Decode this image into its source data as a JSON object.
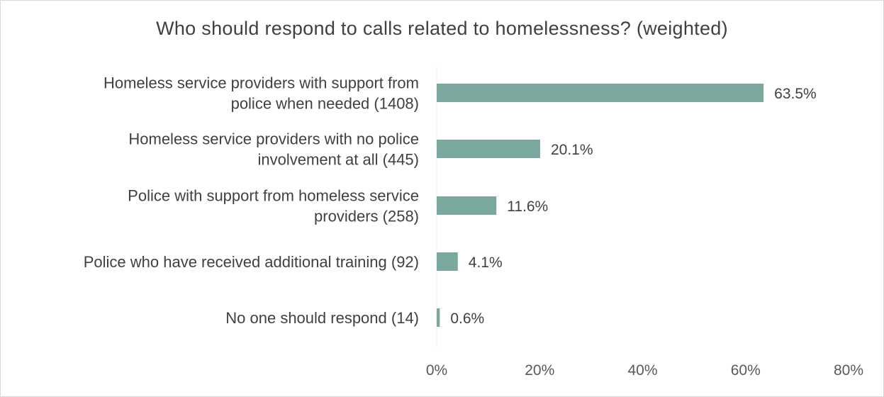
{
  "chart_data": {
    "type": "bar",
    "orientation": "horizontal",
    "title": "Who should respond to calls related to homelessness? (weighted)",
    "xlabel": "",
    "ylabel": "",
    "categories": [
      [
        "Homeless service providers with support from",
        "police when needed (1408)"
      ],
      [
        "Homeless service providers with no police",
        "involvement at all (445)"
      ],
      [
        "Police with support from homeless service",
        "providers (258)"
      ],
      [
        "Police who have received additional training (92)"
      ],
      [
        "No one should respond (14)"
      ]
    ],
    "values": [
      63.5,
      20.1,
      11.6,
      4.1,
      0.6
    ],
    "value_labels": [
      "63.5%",
      "20.1%",
      "11.6%",
      "4.1%",
      "0.6%"
    ],
    "xlim": [
      0,
      80
    ],
    "xticks": [
      0,
      20,
      40,
      60,
      80
    ],
    "xtick_labels": [
      "0%",
      "20%",
      "40%",
      "60%",
      "80%"
    ],
    "bar_color": "#7ba89e",
    "gridlines": false,
    "legend": "none"
  }
}
